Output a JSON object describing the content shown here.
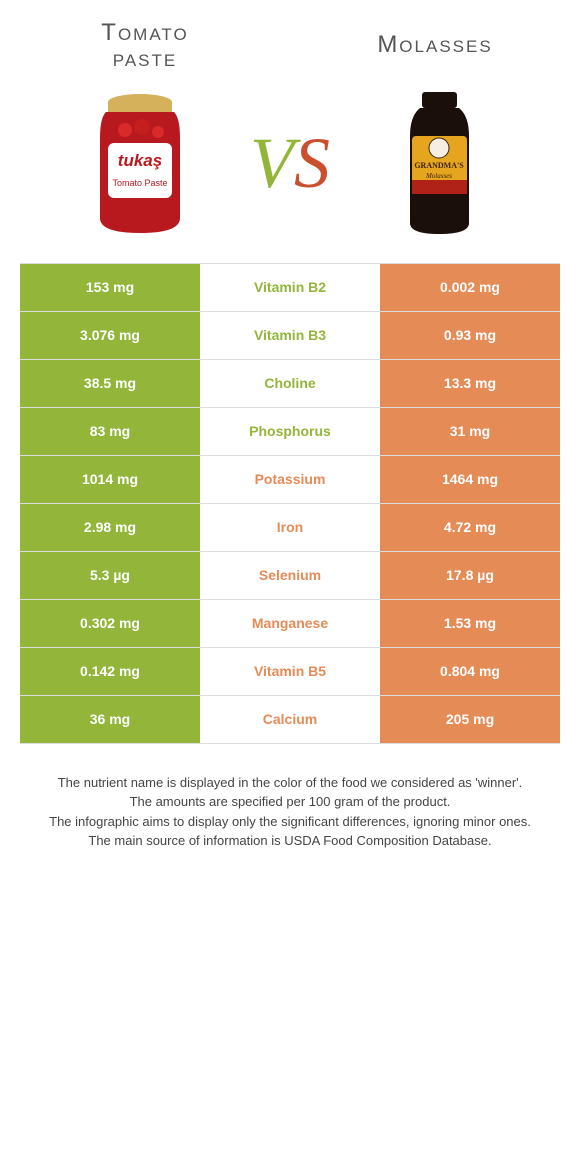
{
  "colors": {
    "left": "#93b63a",
    "right": "#e58b56",
    "vs_v": "#93b63a",
    "vs_s": "#c94f2f"
  },
  "titles": {
    "left_line1": "Tomato",
    "left_line2": "paste",
    "right": "Molasses"
  },
  "vs": {
    "v": "V",
    "s": "S"
  },
  "rows": [
    {
      "left": "153 mg",
      "name": "Vitamin B2",
      "right": "0.002 mg",
      "winner": "left"
    },
    {
      "left": "3.076 mg",
      "name": "Vitamin B3",
      "right": "0.93 mg",
      "winner": "left"
    },
    {
      "left": "38.5 mg",
      "name": "Choline",
      "right": "13.3 mg",
      "winner": "left"
    },
    {
      "left": "83 mg",
      "name": "Phosphorus",
      "right": "31 mg",
      "winner": "left"
    },
    {
      "left": "1014 mg",
      "name": "Potassium",
      "right": "1464 mg",
      "winner": "right"
    },
    {
      "left": "2.98 mg",
      "name": "Iron",
      "right": "4.72 mg",
      "winner": "right"
    },
    {
      "left": "5.3 µg",
      "name": "Selenium",
      "right": "17.8 µg",
      "winner": "right"
    },
    {
      "left": "0.302 mg",
      "name": "Manganese",
      "right": "1.53 mg",
      "winner": "right"
    },
    {
      "left": "0.142 mg",
      "name": "Vitamin B5",
      "right": "0.804 mg",
      "winner": "right"
    },
    {
      "left": "36 mg",
      "name": "Calcium",
      "right": "205 mg",
      "winner": "right"
    }
  ],
  "footnotes": [
    "The nutrient name is displayed in the color of the food we considered as 'winner'.",
    "The amounts are specified per 100 gram of the product.",
    "The infographic aims to display only the significant differences, ignoring minor ones.",
    "The main source of information is USDA Food Composition Database."
  ],
  "products": {
    "left": {
      "brand": "tukaş",
      "sub": "Tomato Paste",
      "jar_color": "#b8191f",
      "label_color": "#ffffff",
      "label_text_color": "#b8191f",
      "lid_color": "#d4b15a"
    },
    "right": {
      "brand": "GRANDMA'S",
      "sub": "Molasses",
      "jar_color": "#1a0f0a",
      "label_color": "#e6a51e",
      "label_text_color": "#3a2410",
      "lid_color": "#1a0f0a",
      "band_color": "#b02218"
    }
  }
}
